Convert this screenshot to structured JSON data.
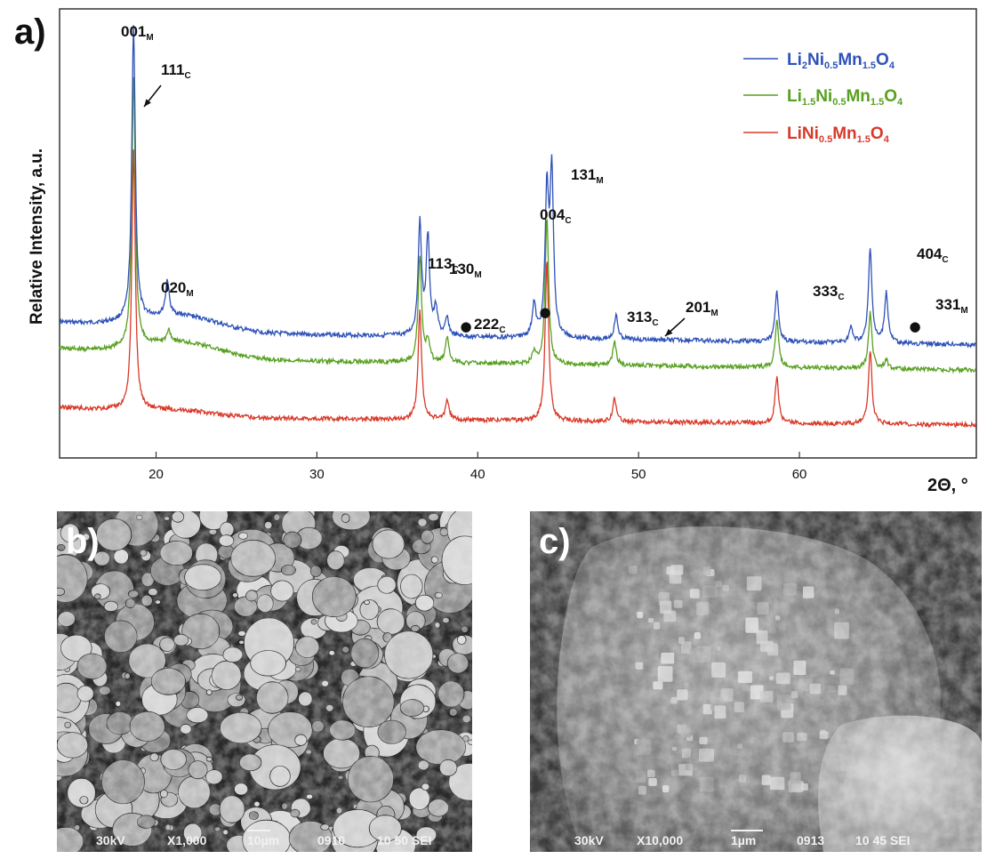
{
  "panel_a": {
    "letter": "a)",
    "chart_data": {
      "type": "line",
      "xlabel": "2Θ, °",
      "ylabel": "Relative Intensity, a.u.",
      "xlim": [
        14,
        71
      ],
      "x_ticks": [
        20,
        30,
        40,
        50,
        60
      ],
      "legend_position": "top-right",
      "series": [
        {
          "name": "Li2Ni0.5Mn1.5O4",
          "name_parts": [
            "Li",
            "2",
            "Ni",
            "0.5",
            "Mn",
            "1.5",
            "O",
            "4"
          ],
          "color": "#2f52b8",
          "peaks": [
            [
              18.6,
              1.0
            ],
            [
              20.7,
              0.12
            ],
            [
              36.4,
              0.38
            ],
            [
              36.9,
              0.33
            ],
            [
              37.4,
              0.09
            ],
            [
              38.1,
              0.06
            ],
            [
              43.5,
              0.11
            ],
            [
              44.3,
              0.48
            ],
            [
              44.6,
              0.55
            ],
            [
              48.6,
              0.08
            ],
            [
              58.6,
              0.17
            ],
            [
              63.2,
              0.05
            ],
            [
              64.4,
              0.32
            ],
            [
              65.4,
              0.17
            ]
          ]
        },
        {
          "name": "Li1.5Ni0.5Mn1.5O4",
          "name_parts": [
            "Li",
            "1.5",
            "Ni",
            "0.5",
            "Mn",
            "1.5",
            "O",
            "4"
          ],
          "color": "#58a021",
          "peaks": [
            [
              18.6,
              0.92
            ],
            [
              20.8,
              0.04
            ],
            [
              36.4,
              0.36
            ],
            [
              36.9,
              0.07
            ],
            [
              38.1,
              0.09
            ],
            [
              43.5,
              0.04
            ],
            [
              44.3,
              0.5
            ],
            [
              48.5,
              0.08
            ],
            [
              58.6,
              0.16
            ],
            [
              64.4,
              0.19
            ],
            [
              65.4,
              0.03
            ]
          ]
        },
        {
          "name": "LiNi0.5Mn1.5O4",
          "name_parts": [
            "LiNi",
            "0.5",
            "Mn",
            "1.5",
            "O",
            "4"
          ],
          "color": "#d83a2a",
          "peaks": [
            [
              18.6,
              0.88
            ],
            [
              36.4,
              0.37
            ],
            [
              38.1,
              0.07
            ],
            [
              44.3,
              0.55
            ],
            [
              48.5,
              0.08
            ],
            [
              58.6,
              0.16
            ],
            [
              64.4,
              0.25
            ]
          ]
        }
      ],
      "annotations": [
        {
          "text": "001",
          "sub": "M"
        },
        {
          "text": "111",
          "sub": "C"
        },
        {
          "text": "020",
          "sub": "M"
        },
        {
          "text": "113",
          "sub": "C"
        },
        {
          "text": "130",
          "sub": "M"
        },
        {
          "text": "222",
          "sub": "C"
        },
        {
          "text": "004",
          "sub": "C"
        },
        {
          "text": "131",
          "sub": "M"
        },
        {
          "text": "313",
          "sub": "C"
        },
        {
          "text": "201",
          "sub": "M"
        },
        {
          "text": "333",
          "sub": "C"
        },
        {
          "text": "404",
          "sub": "C"
        },
        {
          "text": "331",
          "sub": "M"
        }
      ],
      "impurity_marker": "●"
    }
  },
  "panel_b": {
    "letter": "b)",
    "info": {
      "kv": "30kV",
      "mag": "X1,000",
      "scale": "10µm",
      "code": "0910",
      "id": "10 50 SEI"
    }
  },
  "panel_c": {
    "letter": "c)",
    "info": {
      "kv": "30kV",
      "mag": "X10,000",
      "scale": "1µm",
      "code": "0913",
      "id": "10 45 SEI"
    }
  }
}
